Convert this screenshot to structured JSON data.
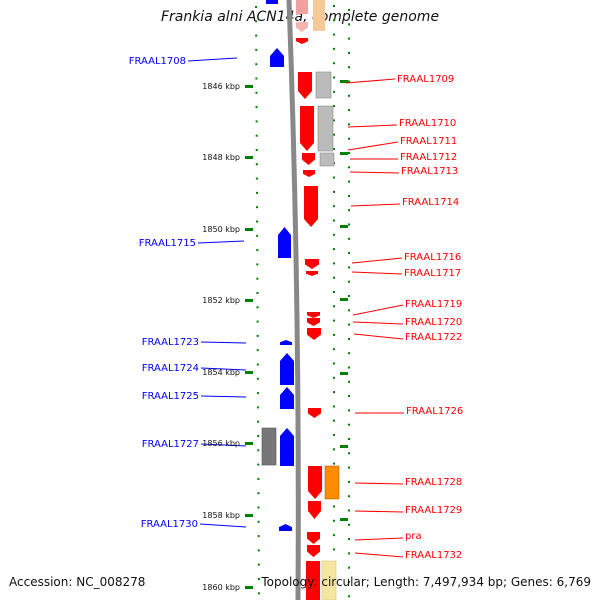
{
  "title": "Frankia alni ACN14a, complete genome",
  "footer": {
    "accession": "Accession: NC_008278",
    "summary": "Topology: circular; Length: 7,497,934 bp; Genes: 6,769"
  },
  "colors": {
    "forward": "#ff0000",
    "reverse": "#0000ff",
    "backbone": "#888888",
    "tick": "#008000",
    "gray_feature": "#bbbbbb",
    "dark_gray_feature": "#777777",
    "orange_feature": "#ff8c00",
    "pale_yellow_feature": "#f5e6a0"
  },
  "scale_labels": [
    "1846 kbp",
    "1848 kbp",
    "1850 kbp",
    "1852 kbp",
    "1854 kbp",
    "1856 kbp",
    "1858 kbp",
    "1860 kbp"
  ],
  "left_genes": [
    "FRAAL1708",
    "FRAAL1715",
    "FRAAL1723",
    "FRAAL1724",
    "FRAAL1725",
    "FRAAL1727",
    "FRAAL1730"
  ],
  "right_genes": [
    "FRAAL1709",
    "FRAAL1710",
    "FRAAL1711",
    "FRAAL1712",
    "FRAAL1713",
    "FRAAL1714",
    "FRAAL1716",
    "FRAAL1717",
    "FRAAL1719",
    "FRAAL1720",
    "FRAAL1722",
    "FRAAL1726",
    "FRAAL1728",
    "FRAAL1729",
    "pra",
    "FRAAL1732"
  ]
}
